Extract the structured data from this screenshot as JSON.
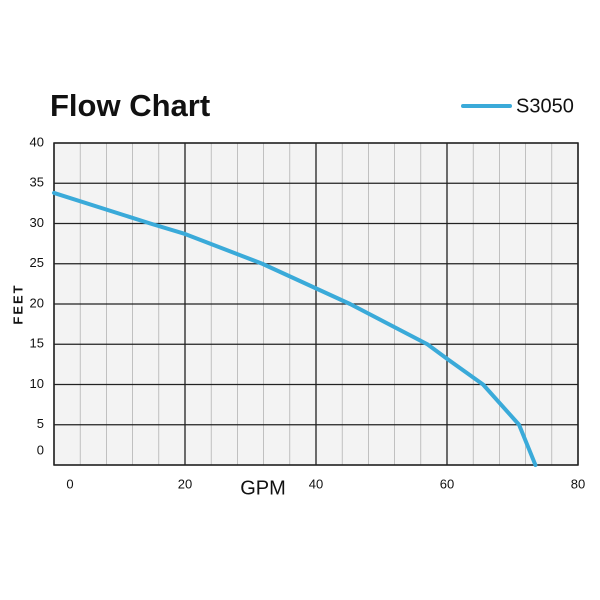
{
  "chart_data": {
    "type": "line",
    "title": "Flow Chart",
    "x_label": "GPM",
    "y_label": "FEET",
    "series": [
      {
        "name": "S3050",
        "color": "#3aaad9",
        "x": [
          0,
          14.7,
          20,
          31.8,
          45.2,
          57,
          60,
          65.5,
          71,
          72.5,
          73.5
        ],
        "values": [
          33.8,
          30,
          28.7,
          25,
          20,
          15,
          13.2,
          10,
          5,
          2,
          0
        ]
      }
    ],
    "xlim": [
      0,
      80
    ],
    "xticks": [
      0,
      20,
      40,
      60,
      80
    ],
    "xminorticks": [
      4,
      8,
      12,
      16,
      24,
      28,
      32,
      36,
      44,
      48,
      52,
      56,
      64,
      68,
      72,
      76
    ],
    "ylim": [
      0,
      40
    ],
    "yticks": [
      0,
      5,
      10,
      15,
      20,
      25,
      30,
      35,
      40
    ],
    "grid": true,
    "legend": "top-right"
  }
}
